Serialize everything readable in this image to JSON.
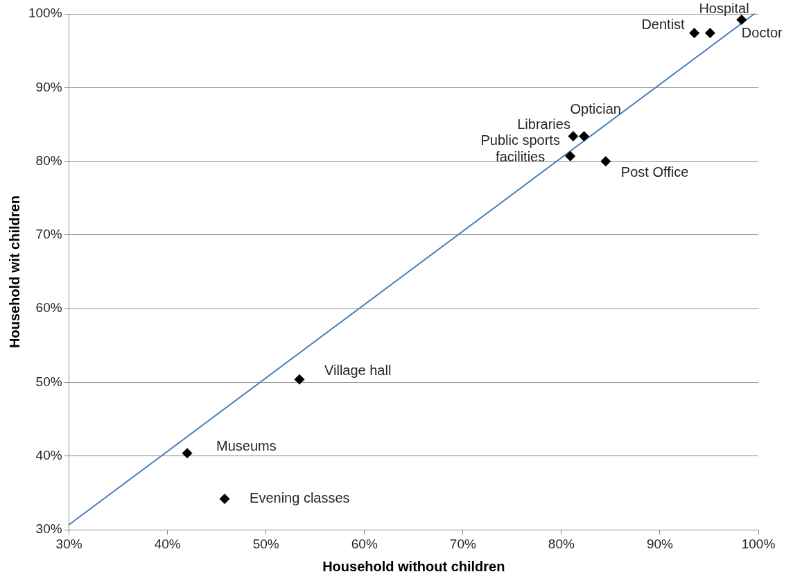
{
  "chart_data": {
    "type": "scatter",
    "xlabel": "Household without children",
    "ylabel": "Household wit children",
    "xlim": [
      30,
      100
    ],
    "ylim": [
      30,
      100
    ],
    "xticks": [
      {
        "value": 30,
        "label": "30%"
      },
      {
        "value": 40,
        "label": "40%"
      },
      {
        "value": 50,
        "label": "50%"
      },
      {
        "value": 60,
        "label": "60%"
      },
      {
        "value": 70,
        "label": "70%"
      },
      {
        "value": 80,
        "label": "80%"
      },
      {
        "value": 90,
        "label": "90%"
      },
      {
        "value": 100,
        "label": "100%"
      }
    ],
    "yticks": [
      {
        "value": 30,
        "label": "30%"
      },
      {
        "value": 40,
        "label": "40%"
      },
      {
        "value": 50,
        "label": "50%"
      },
      {
        "value": 60,
        "label": "60%"
      },
      {
        "value": 70,
        "label": "70%"
      },
      {
        "value": 80,
        "label": "80%"
      },
      {
        "value": 90,
        "label": "90%"
      },
      {
        "value": 100,
        "label": "100%"
      }
    ],
    "grid": "y",
    "legend": false,
    "marker": "diamond",
    "series": [
      {
        "type": "scatter",
        "color": "#000000",
        "x": [
          98.3,
          95.1,
          93.5,
          82.3,
          81.2,
          80.9,
          84.5,
          53.4,
          42.0,
          45.8
        ],
        "values": [
          99.2,
          97.4,
          97.4,
          83.4,
          83.4,
          80.7,
          80.0,
          50.4,
          40.4,
          34.2
        ]
      },
      {
        "type": "line",
        "color": "#4a7ebb",
        "marker": "none",
        "x": [
          30,
          99.6
        ],
        "values": [
          30.7,
          100
        ]
      }
    ],
    "annotations": [
      {
        "text": "Doctor",
        "x": 98.3,
        "y": 99.2
      },
      {
        "text": "Hospital",
        "x": 95.1,
        "y": 97.4
      },
      {
        "text": "Dentist",
        "x": 93.5,
        "y": 97.4
      },
      {
        "text": "Optician",
        "x": 82.3,
        "y": 83.4
      },
      {
        "text": "Libraries",
        "x": 81.2,
        "y": 83.4
      },
      {
        "text": "Public sports facilities",
        "x": 80.9,
        "y": 80.7
      },
      {
        "text": "Post Office",
        "x": 84.5,
        "y": 80.0
      },
      {
        "text": "Village hall",
        "x": 53.4,
        "y": 50.4
      },
      {
        "text": "Museums",
        "x": 42.0,
        "y": 40.4
      },
      {
        "text": "Evening classes",
        "x": 45.8,
        "y": 34.2
      }
    ]
  }
}
